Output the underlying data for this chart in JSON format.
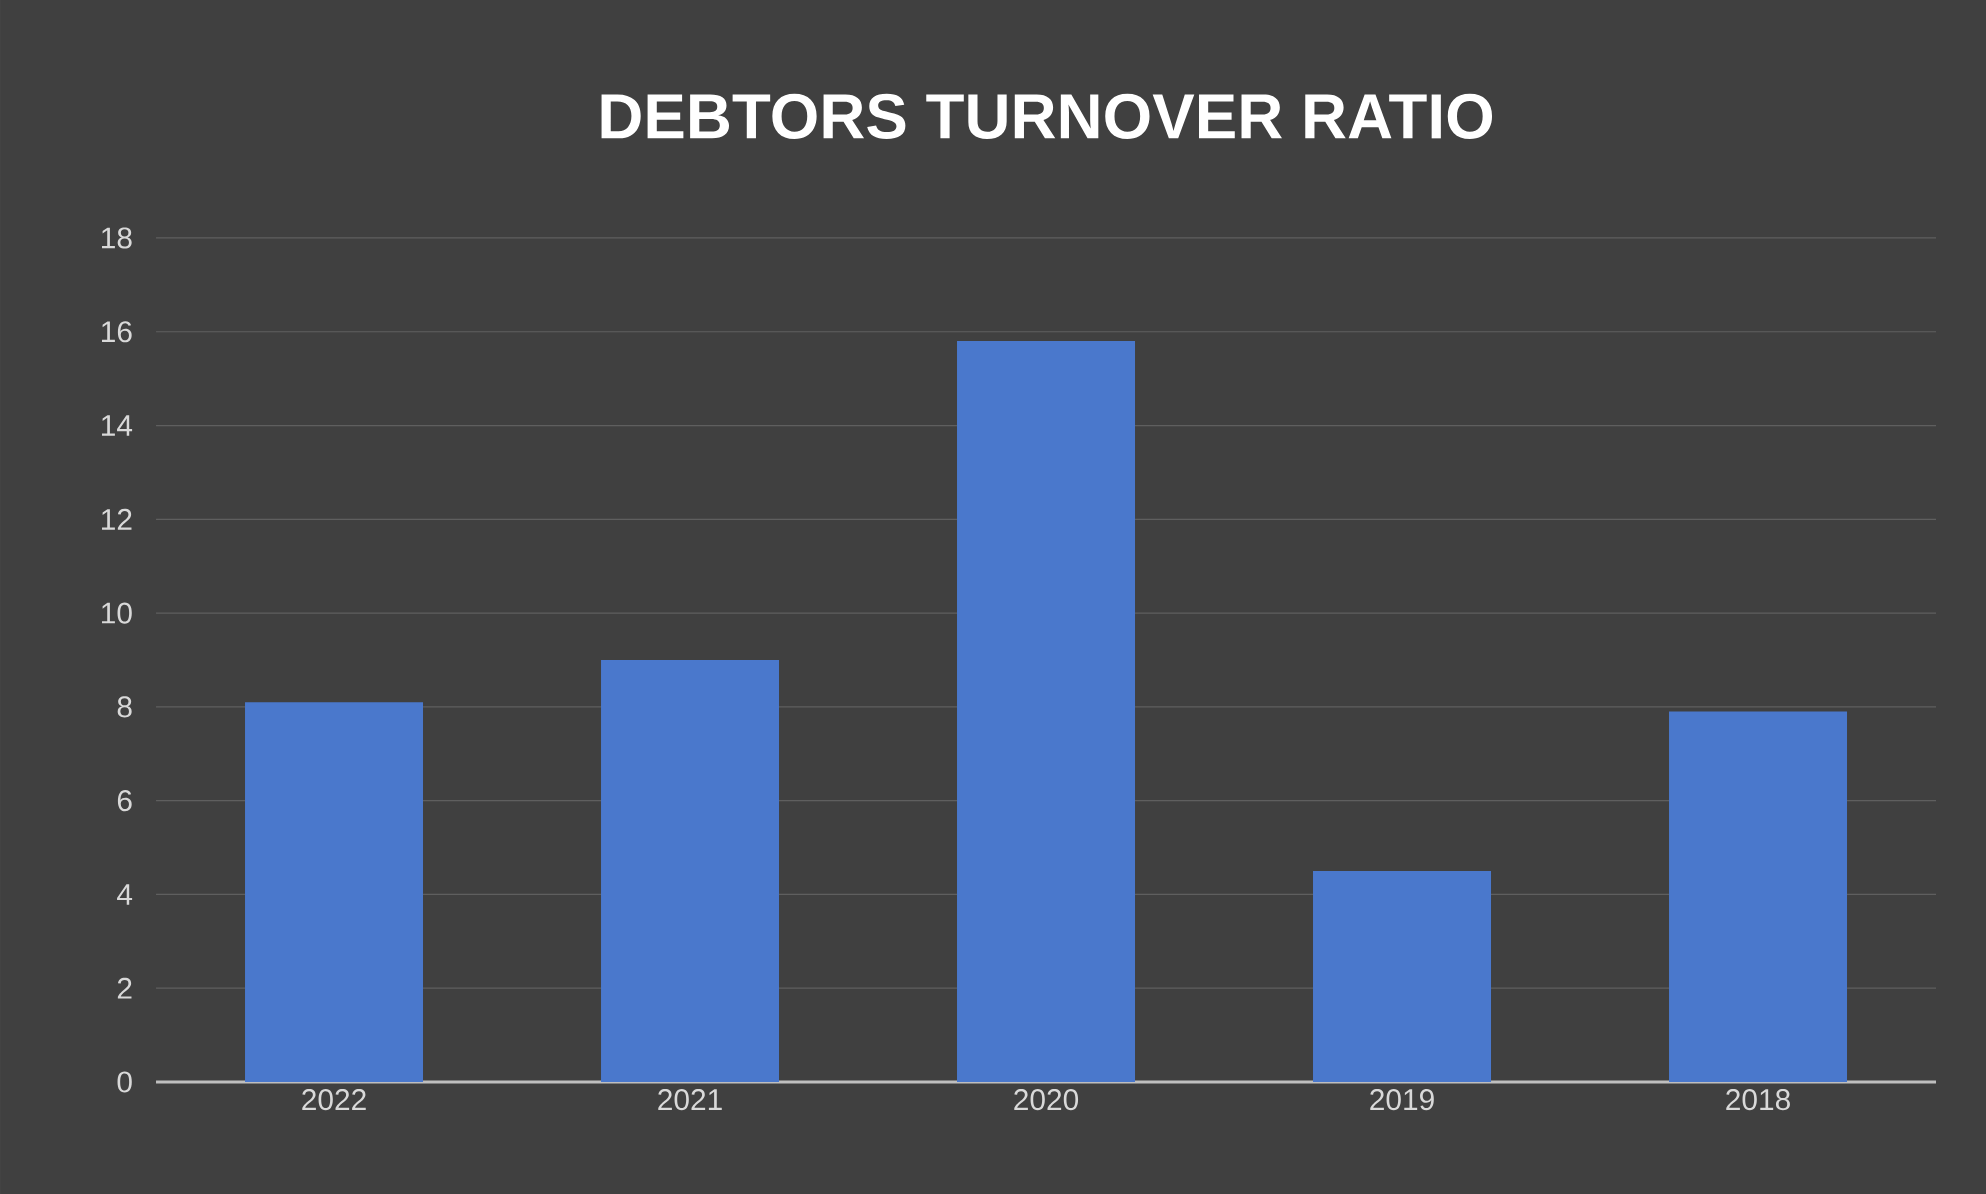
{
  "chart_data": {
    "type": "bar",
    "title": "DEBTORS TURNOVER RATIO",
    "categories": [
      "2022",
      "2021",
      "2020",
      "2019",
      "2018"
    ],
    "values": [
      8.1,
      9.0,
      15.8,
      4.5,
      7.9
    ],
    "color": "#4a78cc",
    "ylim": [
      0,
      18
    ],
    "yticks": [
      0,
      2,
      4,
      6,
      8,
      10,
      12,
      14,
      16,
      18
    ],
    "grid": "y"
  }
}
